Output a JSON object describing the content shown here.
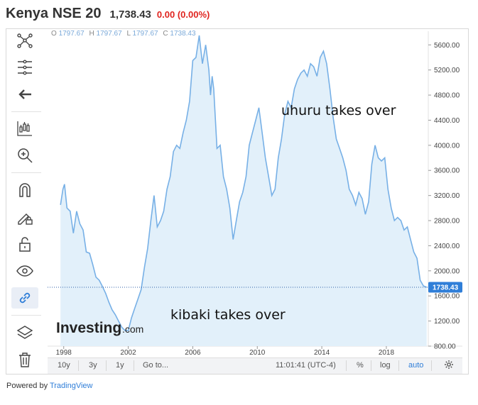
{
  "header": {
    "title": "Kenya NSE 20",
    "price": "1,738.43",
    "change": "0.00 (0.00%)"
  },
  "ohlc": {
    "o_label": "O",
    "o_value": "1797.67",
    "h_label": "H",
    "h_value": "1797.67",
    "l_label": "L",
    "l_value": "1797.67",
    "c_label": "C",
    "c_value": "1738.43"
  },
  "toolbar": [
    {
      "icon": "cross-network-icon"
    },
    {
      "icon": "fib-retracement-icon"
    },
    {
      "icon": "arrow-left-icon"
    },
    {
      "icon": "candles-pattern-icon"
    },
    {
      "icon": "zoom-in-icon"
    },
    {
      "icon": "magnet-icon"
    },
    {
      "icon": "pencil-lock-icon"
    },
    {
      "icon": "unlock-icon"
    },
    {
      "icon": "eye-icon"
    },
    {
      "icon": "link-icon"
    },
    {
      "icon": "layers-icon"
    },
    {
      "icon": "trash-icon"
    }
  ],
  "annotations": {
    "uhuru": "uhuru takes over",
    "kibaki": "kibaki takes over"
  },
  "watermark": {
    "brand": "Investing",
    "suffix": ".com"
  },
  "bottom_bar": {
    "range_10y": "10y",
    "range_3y": "3y",
    "range_1y": "1y",
    "goto": "Go to...",
    "time": "11:01:41 (UTC-4)",
    "percent": "%",
    "log": "log",
    "auto": "auto"
  },
  "footer": {
    "powered": "Powered by",
    "brand": "TradingView"
  },
  "colors": {
    "line": "#77b0e6",
    "fill": "#e2f0fa",
    "price_label": "#2f7ed8",
    "down": "#e0241f"
  },
  "chart_data": {
    "type": "area",
    "title": "Kenya NSE 20",
    "xlabel": "",
    "ylabel": "",
    "x_ticks": [
      "1998",
      "2002",
      "2006",
      "2010",
      "2014",
      "2018"
    ],
    "y_ticks": [
      "800.00",
      "1200.00",
      "1600.00",
      "2000.00",
      "2400.00",
      "2800.00",
      "3200.00",
      "3600.00",
      "4000.00",
      "4400.00",
      "4800.00",
      "5200.00",
      "5600.00"
    ],
    "ylim": [
      800,
      5750
    ],
    "xlim": [
      1997.0,
      2020.6
    ],
    "last_value": "1738.43",
    "series": [
      {
        "x": [
          1997.8,
          1997.95,
          1998.05,
          1998.2,
          1998.4,
          1998.6,
          1998.8,
          1999.0,
          1999.2,
          1999.4,
          1999.6,
          1999.8,
          2000.0,
          2000.2,
          2000.4,
          2000.6,
          2000.8,
          2001.0,
          2001.2,
          2001.4,
          2001.6,
          2001.8,
          2002.0,
          2002.2,
          2002.4,
          2002.6,
          2002.8,
          2003.0,
          2003.2,
          2003.4,
          2003.6,
          2003.8,
          2004.0,
          2004.2,
          2004.4,
          2004.6,
          2004.8,
          2005.0,
          2005.2,
          2005.4,
          2005.6,
          2005.8,
          2006.0,
          2006.2,
          2006.4,
          2006.6,
          2006.8,
          2007.0,
          2007.1,
          2007.2,
          2007.3,
          2007.5,
          2007.7,
          2007.9,
          2008.1,
          2008.3,
          2008.5,
          2008.7,
          2008.9,
          2009.1,
          2009.3,
          2009.5,
          2009.7,
          2009.9,
          2010.1,
          2010.3,
          2010.5,
          2010.7,
          2010.9,
          2011.1,
          2011.3,
          2011.5,
          2011.7,
          2011.9,
          2012.1,
          2012.3,
          2012.5,
          2012.7,
          2012.9,
          2013.1,
          2013.3,
          2013.5,
          2013.7,
          2013.9,
          2014.1,
          2014.3,
          2014.5,
          2014.7,
          2014.9,
          2015.1,
          2015.3,
          2015.5,
          2015.7,
          2015.9,
          2016.1,
          2016.3,
          2016.5,
          2016.7,
          2016.9,
          2017.1,
          2017.3,
          2017.5,
          2017.7,
          2017.9,
          2018.1,
          2018.3,
          2018.5,
          2018.7,
          2018.9,
          2019.1,
          2019.3,
          2019.5,
          2019.7,
          2019.9,
          2020.1,
          2020.3,
          2020.5
        ],
        "values": [
          3050,
          3300,
          3380,
          3000,
          2950,
          2600,
          2950,
          2750,
          2650,
          2300,
          2280,
          2100,
          1900,
          1850,
          1750,
          1640,
          1500,
          1380,
          1300,
          1200,
          1100,
          1050,
          1050,
          1250,
          1400,
          1550,
          1700,
          2050,
          2350,
          2800,
          3200,
          2700,
          2800,
          2950,
          3300,
          3500,
          3900,
          4000,
          3950,
          4200,
          4400,
          4700,
          5350,
          5400,
          5750,
          5300,
          5600,
          5200,
          4800,
          5100,
          4900,
          3950,
          4000,
          3500,
          3300,
          3000,
          2500,
          2800,
          3100,
          3250,
          3500,
          4000,
          4200,
          4400,
          4600,
          4200,
          3800,
          3500,
          3200,
          3300,
          3800,
          4100,
          4500,
          4700,
          4600,
          4900,
          5050,
          5150,
          5200,
          5100,
          5300,
          5250,
          5100,
          5400,
          5500,
          5300,
          4900,
          4450,
          4100,
          3950,
          3800,
          3600,
          3300,
          3200,
          3050,
          3250,
          3150,
          2900,
          3100,
          3700,
          4000,
          3800,
          3750,
          3800,
          3300,
          3000,
          2800,
          2850,
          2800,
          2650,
          2700,
          2500,
          2300,
          2200,
          1850,
          1760,
          1738
        ]
      }
    ]
  }
}
